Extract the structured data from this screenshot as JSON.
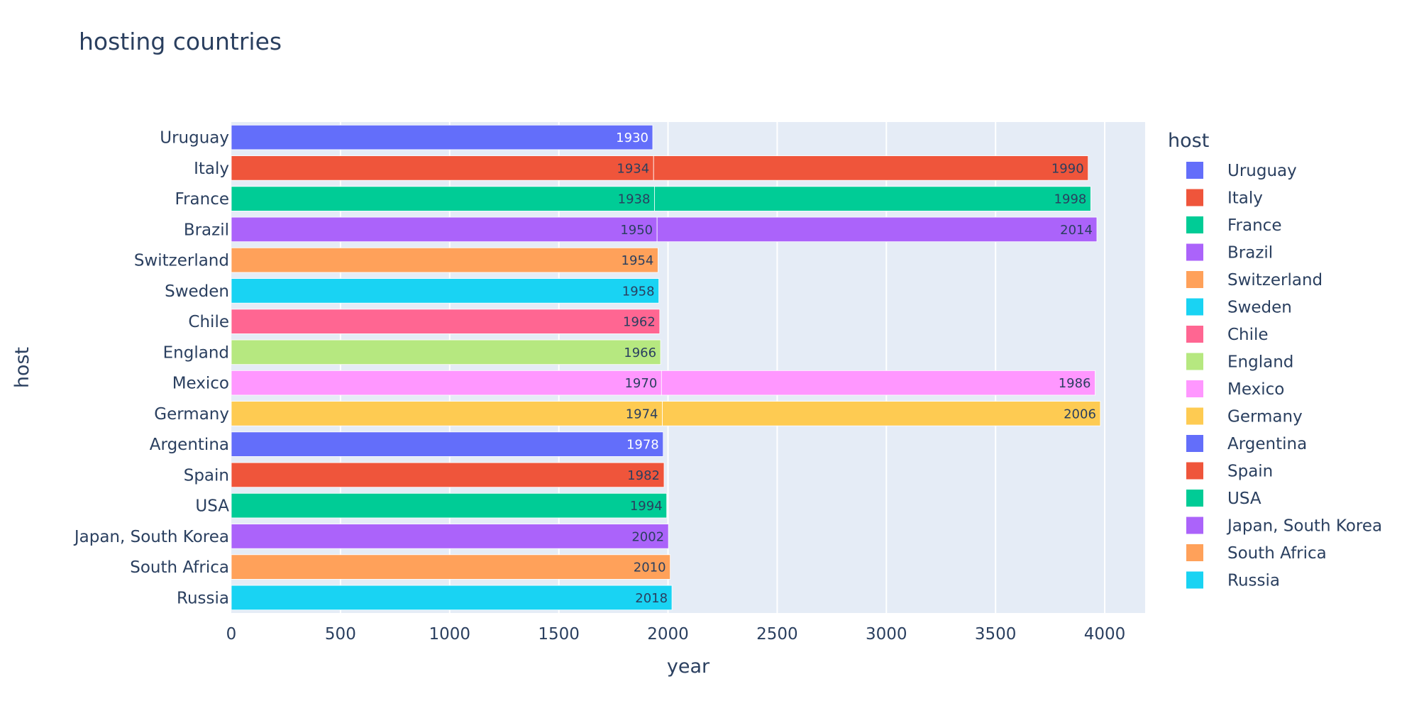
{
  "chart_data": {
    "type": "bar",
    "orientation": "horizontal",
    "barmode": "stack",
    "title": "hosting countries",
    "xlabel": "year",
    "ylabel": "host",
    "xlim": [
      0,
      4185
    ],
    "x_ticks": [
      0,
      500,
      1000,
      1500,
      2000,
      2500,
      3000,
      3500,
      4000
    ],
    "grid": true,
    "plot_background": "#e5ecf6",
    "legend": {
      "title": "host",
      "placement": "right"
    },
    "categories": [
      "Uruguay",
      "Italy",
      "France",
      "Brazil",
      "Switzerland",
      "Sweden",
      "Chile",
      "England",
      "Mexico",
      "Germany",
      "Argentina",
      "Spain",
      "USA",
      "Japan, South Korea",
      "South Africa",
      "Russia"
    ],
    "series": [
      {
        "name": "Uruguay",
        "color": "#636efa",
        "segments": [
          {
            "category": "Uruguay",
            "value": 1930
          }
        ]
      },
      {
        "name": "Italy",
        "color": "#EF553B",
        "segments": [
          {
            "category": "Italy",
            "value": 1934
          },
          {
            "category": "Italy",
            "value": 1990
          }
        ]
      },
      {
        "name": "France",
        "color": "#00cc96",
        "segments": [
          {
            "category": "France",
            "value": 1938
          },
          {
            "category": "France",
            "value": 1998
          }
        ]
      },
      {
        "name": "Brazil",
        "color": "#ab63fa",
        "segments": [
          {
            "category": "Brazil",
            "value": 1950
          },
          {
            "category": "Brazil",
            "value": 2014
          }
        ]
      },
      {
        "name": "Switzerland",
        "color": "#FFA15A",
        "segments": [
          {
            "category": "Switzerland",
            "value": 1954
          }
        ]
      },
      {
        "name": "Sweden",
        "color": "#19d3f3",
        "segments": [
          {
            "category": "Sweden",
            "value": 1958
          }
        ]
      },
      {
        "name": "Chile",
        "color": "#FF6692",
        "segments": [
          {
            "category": "Chile",
            "value": 1962
          }
        ]
      },
      {
        "name": "England",
        "color": "#B6E880",
        "segments": [
          {
            "category": "England",
            "value": 1966
          }
        ]
      },
      {
        "name": "Mexico",
        "color": "#FF97FF",
        "segments": [
          {
            "category": "Mexico",
            "value": 1970
          },
          {
            "category": "Mexico",
            "value": 1986
          }
        ]
      },
      {
        "name": "Germany",
        "color": "#FECB52",
        "segments": [
          {
            "category": "Germany",
            "value": 1974
          },
          {
            "category": "Germany",
            "value": 2006
          }
        ]
      },
      {
        "name": "Argentina",
        "color": "#636efa",
        "segments": [
          {
            "category": "Argentina",
            "value": 1978
          }
        ]
      },
      {
        "name": "Spain",
        "color": "#EF553B",
        "segments": [
          {
            "category": "Spain",
            "value": 1982
          }
        ]
      },
      {
        "name": "USA",
        "color": "#00cc96",
        "segments": [
          {
            "category": "USA",
            "value": 1994
          }
        ]
      },
      {
        "name": "Japan, South Korea",
        "color": "#ab63fa",
        "segments": [
          {
            "category": "Japan, South Korea",
            "value": 2002
          }
        ]
      },
      {
        "name": "South Africa",
        "color": "#FFA15A",
        "segments": [
          {
            "category": "South Africa",
            "value": 2010
          }
        ]
      },
      {
        "name": "Russia",
        "color": "#19d3f3",
        "segments": [
          {
            "category": "Russia",
            "value": 2018
          }
        ]
      }
    ]
  }
}
